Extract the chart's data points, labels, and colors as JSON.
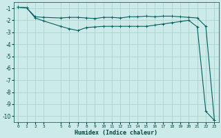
{
  "xlabel": "Humidex (Indice chaleur)",
  "bg_color": "#cceae7",
  "grid_color": "#aad4d0",
  "line_color": "#006060",
  "xlim": [
    -0.5,
    23.5
  ],
  "ylim": [
    -10.5,
    -0.5
  ],
  "x_ticks": [
    0,
    1,
    2,
    3,
    5,
    6,
    7,
    8,
    9,
    10,
    11,
    12,
    13,
    14,
    15,
    16,
    17,
    18,
    19,
    20,
    21,
    22,
    23
  ],
  "y_ticks": [
    -1,
    -2,
    -3,
    -4,
    -5,
    -6,
    -7,
    -8,
    -9,
    -10
  ],
  "line1_x": [
    0,
    1,
    2,
    3,
    5,
    6,
    7,
    8,
    9,
    10,
    11,
    12,
    13,
    14,
    15,
    16,
    17,
    18,
    19,
    20,
    21,
    22,
    23
  ],
  "line1_y": [
    -0.9,
    -0.95,
    -1.7,
    -1.75,
    -1.8,
    -1.75,
    -1.75,
    -1.8,
    -1.85,
    -1.75,
    -1.75,
    -1.8,
    -1.7,
    -1.7,
    -1.65,
    -1.7,
    -1.65,
    -1.65,
    -1.7,
    -1.75,
    -1.8,
    -2.5,
    -10.3
  ],
  "line2_x": [
    0,
    1,
    2,
    3,
    5,
    6,
    7,
    8,
    9,
    10,
    11,
    12,
    13,
    14,
    15,
    16,
    17,
    18,
    19,
    20,
    21,
    22,
    23
  ],
  "line2_y": [
    -0.9,
    -0.95,
    -1.8,
    -2.05,
    -2.5,
    -2.7,
    -2.85,
    -2.6,
    -2.55,
    -2.5,
    -2.5,
    -2.5,
    -2.5,
    -2.5,
    -2.5,
    -2.4,
    -2.3,
    -2.2,
    -2.1,
    -2.0,
    -2.55,
    -9.6,
    -10.35
  ]
}
